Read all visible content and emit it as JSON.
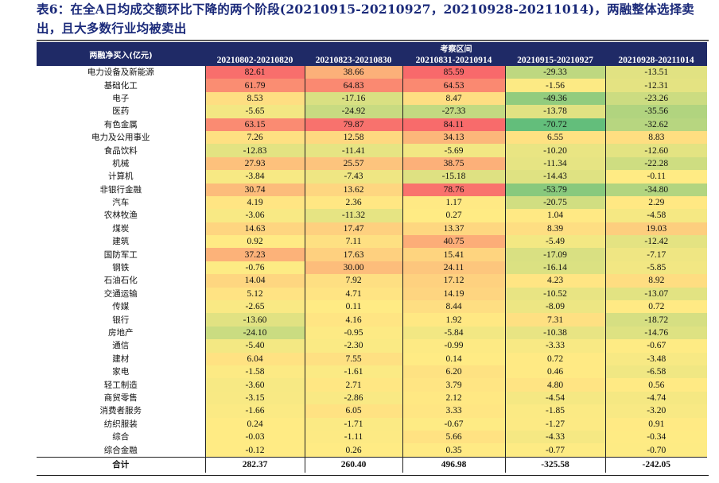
{
  "title": "表6：在全A日均成交额环比下降的两个阶段(20210915-20210927，20210928-20211014)，两融整体选择卖出，且大多数行业均被卖出",
  "table": {
    "row_header": "两融净买入(亿元)",
    "group_header": "考察区间",
    "columns": [
      "20210802-20210820",
      "20210823-20210830",
      "20210831-20210914",
      "20210915-20210927",
      "20210928-20211014"
    ],
    "rows": [
      {
        "name": "电力设备及新能源",
        "values": [
          "82.61",
          "38.66",
          "85.59",
          "-29.33",
          "-13.51"
        ]
      },
      {
        "name": "基础化工",
        "values": [
          "61.79",
          "64.83",
          "64.53",
          "-1.56",
          "-12.31"
        ]
      },
      {
        "name": "电子",
        "values": [
          "8.53",
          "-17.16",
          "8.47",
          "-49.36",
          "-23.26"
        ]
      },
      {
        "name": "医药",
        "values": [
          "-5.65",
          "-24.92",
          "-27.33",
          "-13.78",
          "-35.56"
        ]
      },
      {
        "name": "有色金属",
        "values": [
          "63.15",
          "79.87",
          "84.11",
          "-70.72",
          "-32.62"
        ]
      },
      {
        "name": "电力及公用事业",
        "values": [
          "7.26",
          "12.58",
          "34.13",
          "6.55",
          "8.83"
        ]
      },
      {
        "name": "食品饮料",
        "values": [
          "-12.83",
          "-11.41",
          "-5.69",
          "-10.20",
          "-12.60"
        ]
      },
      {
        "name": "机械",
        "values": [
          "27.93",
          "25.57",
          "38.75",
          "-11.34",
          "-22.28"
        ]
      },
      {
        "name": "计算机",
        "values": [
          "-3.84",
          "-7.43",
          "-15.18",
          "-14.43",
          "-0.11"
        ]
      },
      {
        "name": "非银行金融",
        "values": [
          "30.74",
          "13.62",
          "78.76",
          "-53.79",
          "-34.80"
        ]
      },
      {
        "name": "汽车",
        "values": [
          "4.19",
          "2.36",
          "1.17",
          "-20.75",
          "2.29"
        ]
      },
      {
        "name": "农林牧渔",
        "values": [
          "-3.06",
          "-11.32",
          "0.27",
          "1.04",
          "-4.58"
        ]
      },
      {
        "name": "煤炭",
        "values": [
          "14.63",
          "17.47",
          "13.37",
          "8.39",
          "19.03"
        ]
      },
      {
        "name": "建筑",
        "values": [
          "0.92",
          "7.11",
          "40.75",
          "-5.49",
          "-12.42"
        ]
      },
      {
        "name": "国防军工",
        "values": [
          "37.23",
          "17.63",
          "15.41",
          "-17.09",
          "-7.17"
        ]
      },
      {
        "name": "钢铁",
        "values": [
          "-0.76",
          "30.00",
          "24.11",
          "-16.14",
          "-5.85"
        ]
      },
      {
        "name": "石油石化",
        "values": [
          "14.04",
          "7.92",
          "17.12",
          "4.23",
          "8.92"
        ]
      },
      {
        "name": "交通运输",
        "values": [
          "5.12",
          "4.71",
          "14.19",
          "-10.52",
          "-13.07"
        ]
      },
      {
        "name": "传媒",
        "values": [
          "-2.65",
          "0.11",
          "8.44",
          "-8.09",
          "0.72"
        ]
      },
      {
        "name": "银行",
        "values": [
          "-13.60",
          "4.16",
          "1.92",
          "7.31",
          "-18.72"
        ]
      },
      {
        "name": "房地产",
        "values": [
          "-24.10",
          "-0.95",
          "-5.84",
          "-10.38",
          "-14.76"
        ]
      },
      {
        "name": "通信",
        "values": [
          "-5.40",
          "-2.30",
          "-0.99",
          "-3.33",
          "-0.67"
        ]
      },
      {
        "name": "建材",
        "values": [
          "6.04",
          "7.55",
          "0.14",
          "0.72",
          "-3.48"
        ]
      },
      {
        "name": "家电",
        "values": [
          "-1.58",
          "-1.61",
          "6.20",
          "0.46",
          "-6.58"
        ]
      },
      {
        "name": "轻工制造",
        "values": [
          "-3.60",
          "2.71",
          "3.79",
          "4.80",
          "0.56"
        ]
      },
      {
        "name": "商贸零售",
        "values": [
          "-3.15",
          "-2.86",
          "2.12",
          "-4.54",
          "-4.74"
        ]
      },
      {
        "name": "消费者服务",
        "values": [
          "-1.66",
          "6.05",
          "3.33",
          "-1.85",
          "-3.20"
        ]
      },
      {
        "name": "纺织服装",
        "values": [
          "0.24",
          "-1.71",
          "-0.67",
          "-1.27",
          "0.91"
        ]
      },
      {
        "name": "综合",
        "values": [
          "-0.03",
          "-1.11",
          "5.66",
          "-4.33",
          "-0.34"
        ]
      },
      {
        "name": "综合金融",
        "values": [
          "-0.12",
          "0.26",
          "0.35",
          "-0.77",
          "-0.70"
        ]
      }
    ],
    "total": {
      "name": "合计",
      "values": [
        "282.37",
        "260.40",
        "496.98",
        "-325.58",
        "-242.05"
      ]
    }
  },
  "colors": {
    "high": "#f8696b",
    "mid": "#ffeb84",
    "low": "#63be7b",
    "header_bg": "#1f2a66"
  }
}
